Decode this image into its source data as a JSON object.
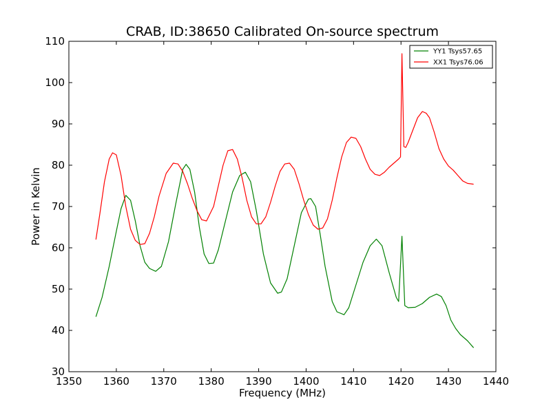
{
  "chart_data": {
    "type": "line",
    "title": "CRAB, ID:38650 Calibrated On-source spectrum",
    "xlabel": "Frequency (MHz)",
    "ylabel": "Power in Kelvin",
    "xlim": [
      1350,
      1440
    ],
    "ylim": [
      30,
      110
    ],
    "xticks": [
      1350,
      1360,
      1370,
      1380,
      1390,
      1400,
      1410,
      1420,
      1430,
      1440
    ],
    "yticks": [
      30,
      40,
      50,
      60,
      70,
      80,
      90,
      100,
      110
    ],
    "grid": false,
    "legend_position": "top-right",
    "series": [
      {
        "name": "YY1 Tsys57.65",
        "color": "#008000",
        "x": [
          1355.7,
          1357,
          1358.5,
          1360,
          1361,
          1362,
          1363,
          1364,
          1365,
          1366,
          1367,
          1368.3,
          1369.5,
          1371,
          1372.5,
          1374,
          1374.7,
          1375.5,
          1376.5,
          1377.5,
          1378.5,
          1379.5,
          1380.5,
          1381.5,
          1383,
          1384.5,
          1386,
          1387.2,
          1388.3,
          1389.5,
          1391,
          1392.5,
          1394,
          1394.8,
          1396,
          1397.5,
          1399,
          1400.5,
          1401,
          1402,
          1403,
          1404,
          1405.5,
          1406.5,
          1408,
          1409,
          1410.5,
          1412,
          1413.5,
          1414.8,
          1416,
          1417.5,
          1419,
          1419.5,
          1420.2,
          1420.8,
          1421.5,
          1423,
          1424.5,
          1426,
          1427.5,
          1428.5,
          1429.5,
          1430.5,
          1431.5,
          1432.5,
          1434,
          1435.3
        ],
        "values": [
          43.3,
          48,
          55.5,
          64,
          69.5,
          72.7,
          71.5,
          66.5,
          60.5,
          56.5,
          55,
          54.3,
          55.5,
          61.5,
          70.5,
          79,
          80.2,
          79,
          73.5,
          65,
          58.5,
          56.2,
          56.3,
          59.5,
          66.5,
          73.5,
          77.5,
          78.3,
          76,
          69,
          58.5,
          51.5,
          49,
          49.3,
          52.5,
          60.5,
          68.5,
          71.8,
          71.9,
          70,
          63,
          55.5,
          47,
          44.5,
          43.8,
          45.5,
          51,
          56.5,
          60.5,
          62.1,
          60.5,
          54,
          48,
          47,
          62.8,
          46,
          45.5,
          45.6,
          46.5,
          48,
          48.8,
          48.2,
          46,
          42.5,
          40.5,
          39,
          37.5,
          35.8
        ]
      },
      {
        "name": "XX1 Tsys76.06",
        "color": "#ff0000",
        "x": [
          1355.7,
          1356.5,
          1357.5,
          1358.5,
          1359.2,
          1360,
          1361,
          1362,
          1363,
          1364,
          1365,
          1366,
          1367,
          1368,
          1369,
          1370.5,
          1372,
          1373,
          1374,
          1375,
          1376,
          1377,
          1378,
          1379,
          1380.5,
          1381.5,
          1382.5,
          1383.5,
          1384.5,
          1385.5,
          1386.5,
          1387.5,
          1388.5,
          1389.5,
          1390.5,
          1391.5,
          1392.5,
          1393.5,
          1394.5,
          1395.5,
          1396.5,
          1397.5,
          1398.5,
          1399.5,
          1400.5,
          1401.5,
          1402.5,
          1403.5,
          1404.5,
          1405.5,
          1406.5,
          1407.5,
          1408.5,
          1409.5,
          1410.5,
          1411.5,
          1412.5,
          1413.5,
          1414.5,
          1415.5,
          1416.5,
          1417.5,
          1418.5,
          1419.5,
          1419.9,
          1420.2,
          1420.6,
          1421,
          1421.5,
          1422.5,
          1423.5,
          1424.5,
          1425.3,
          1426,
          1427,
          1428,
          1429,
          1430,
          1431,
          1432,
          1433,
          1434,
          1435.3
        ],
        "values": [
          62,
          68,
          76,
          81.5,
          83,
          82.5,
          77.5,
          70,
          64.5,
          61.8,
          60.8,
          61,
          63.5,
          67.5,
          72.5,
          78,
          80.5,
          80.3,
          78.5,
          75.5,
          72,
          69,
          66.8,
          66.5,
          70,
          75,
          80,
          83.5,
          83.8,
          81.5,
          77,
          71.5,
          67.5,
          65.8,
          65.8,
          67.5,
          71,
          75,
          78.5,
          80.3,
          80.5,
          79,
          75.5,
          71.5,
          68,
          65.5,
          64.5,
          64.8,
          67,
          71.5,
          77,
          82,
          85.5,
          86.8,
          86.5,
          84.5,
          81.5,
          79,
          77.8,
          77.5,
          78.3,
          79.5,
          80.5,
          81.5,
          82,
          107,
          84.5,
          84.3,
          85.5,
          88.5,
          91.5,
          93,
          92.6,
          91.5,
          88,
          84,
          81.5,
          79.8,
          78.8,
          77.5,
          76.2,
          75.6,
          75.4
        ]
      }
    ]
  }
}
